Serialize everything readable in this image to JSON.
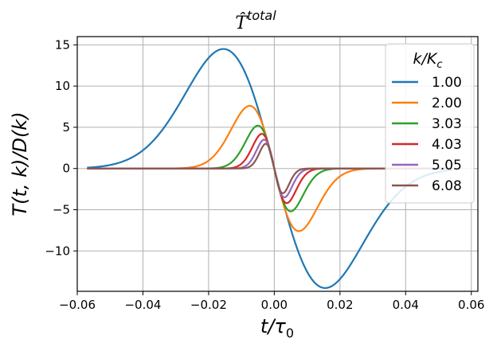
{
  "chart_data": {
    "type": "line",
    "title": "T̂",
    "title_superscript": "total",
    "xlabel": "t/τ",
    "xlabel_sub": "0",
    "ylabel": "T(t, k)/D(k)",
    "xlim": [
      -0.06,
      0.062
    ],
    "ylim": [
      -14.9,
      16.0
    ],
    "xticks": [
      -0.06,
      -0.04,
      -0.02,
      0.0,
      0.02,
      0.04,
      0.06
    ],
    "xtick_labels": [
      "−0.06",
      "−0.04",
      "−0.02",
      "0.00",
      "0.02",
      "0.04",
      "0.06"
    ],
    "yticks": [
      -10,
      -5,
      0,
      5,
      10,
      15
    ],
    "ytick_labels": [
      "−10",
      "−5",
      "0",
      "5",
      "10",
      "15"
    ],
    "grid": true,
    "x_range": [
      -0.057,
      0.054
    ],
    "legend": {
      "title": "k/K",
      "title_sub": "c",
      "placement": "top-right"
    },
    "series": [
      {
        "name": "1.00",
        "color": "#1f77b4",
        "amplitude": 14.5,
        "peak_t": 0.0155
      },
      {
        "name": "2.00",
        "color": "#ff7f0e",
        "amplitude": 7.6,
        "peak_t": 0.0075
      },
      {
        "name": "3.03",
        "color": "#2ca02c",
        "amplitude": 5.2,
        "peak_t": 0.005
      },
      {
        "name": "4.03",
        "color": "#d62728",
        "amplitude": 4.2,
        "peak_t": 0.0038
      },
      {
        "name": "5.05",
        "color": "#9467bd",
        "amplitude": 3.5,
        "peak_t": 0.0031
      },
      {
        "name": "6.08",
        "color": "#8c564b",
        "amplitude": 3.0,
        "peak_t": 0.0026
      }
    ]
  }
}
